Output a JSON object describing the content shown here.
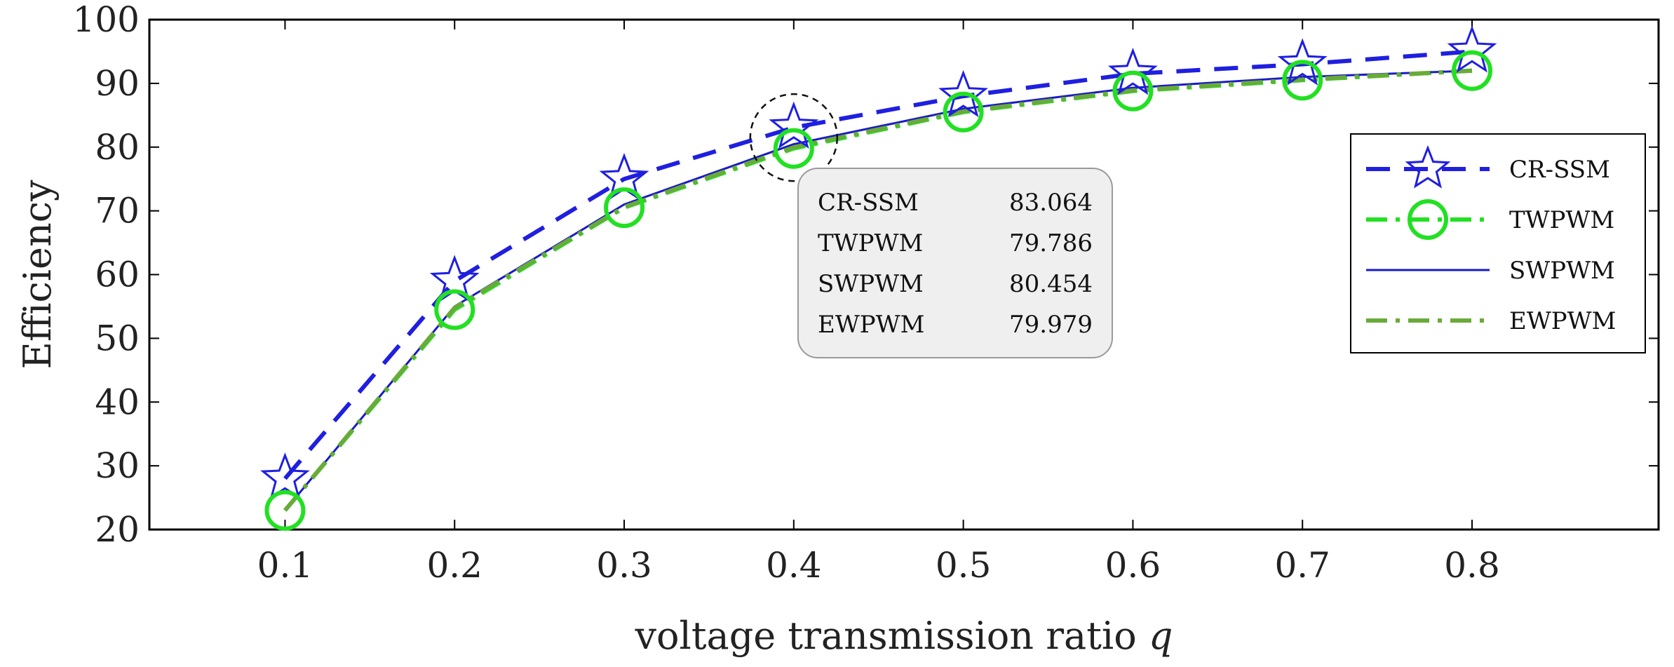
{
  "chart_data": {
    "type": "line",
    "title": "",
    "xlabel": "voltage transmission ratio",
    "xlabel_var": "q",
    "ylabel": "Efficiency",
    "xlim": [
      0.02,
      0.91
    ],
    "ylim": [
      20,
      100
    ],
    "x": [
      0.1,
      0.2,
      0.3,
      0.4,
      0.5,
      0.6,
      0.7,
      0.8
    ],
    "x_tick_labels": [
      "0.1",
      "0.2",
      "0.3",
      "0.4",
      "0.5",
      "0.6",
      "0.7",
      "0.8"
    ],
    "y_ticks": [
      20,
      30,
      40,
      50,
      60,
      70,
      80,
      90,
      100
    ],
    "y_tick_labels": [
      "20",
      "30",
      "40",
      "50",
      "60",
      "70",
      "80",
      "90",
      "100"
    ],
    "grid": false,
    "legend_position": "right",
    "series": [
      {
        "name": "CR-SSM",
        "color": "#1f1fe0",
        "style": "dashed",
        "marker": "star",
        "values": [
          28.0,
          59.0,
          75.0,
          83.064,
          88.0,
          91.5,
          93.0,
          95.0
        ]
      },
      {
        "name": "TWPWM",
        "color": "#22e022",
        "style": "dashdot",
        "marker": "circle",
        "values": [
          23.0,
          54.5,
          70.5,
          79.786,
          85.5,
          88.8,
          90.5,
          92.0
        ]
      },
      {
        "name": "SWPWM",
        "color": "#1a1ac8",
        "style": "solid",
        "marker": "none",
        "values": [
          23.0,
          55.0,
          71.0,
          80.454,
          86.0,
          89.3,
          91.0,
          92.0
        ]
      },
      {
        "name": "EWPWM",
        "color": "#6aaa3a",
        "style": "dashdot",
        "marker": "none",
        "values": [
          23.0,
          54.8,
          70.6,
          79.979,
          85.6,
          88.9,
          90.6,
          92.0
        ]
      }
    ],
    "annotation": {
      "x": 0.4,
      "rows": [
        {
          "label": "CR-SSM",
          "value": "83.064"
        },
        {
          "label": "TWPWM",
          "value": "79.786"
        },
        {
          "label": "SWPWM",
          "value": "80.454"
        },
        {
          "label": "EWPWM",
          "value": "79.979"
        }
      ]
    }
  }
}
